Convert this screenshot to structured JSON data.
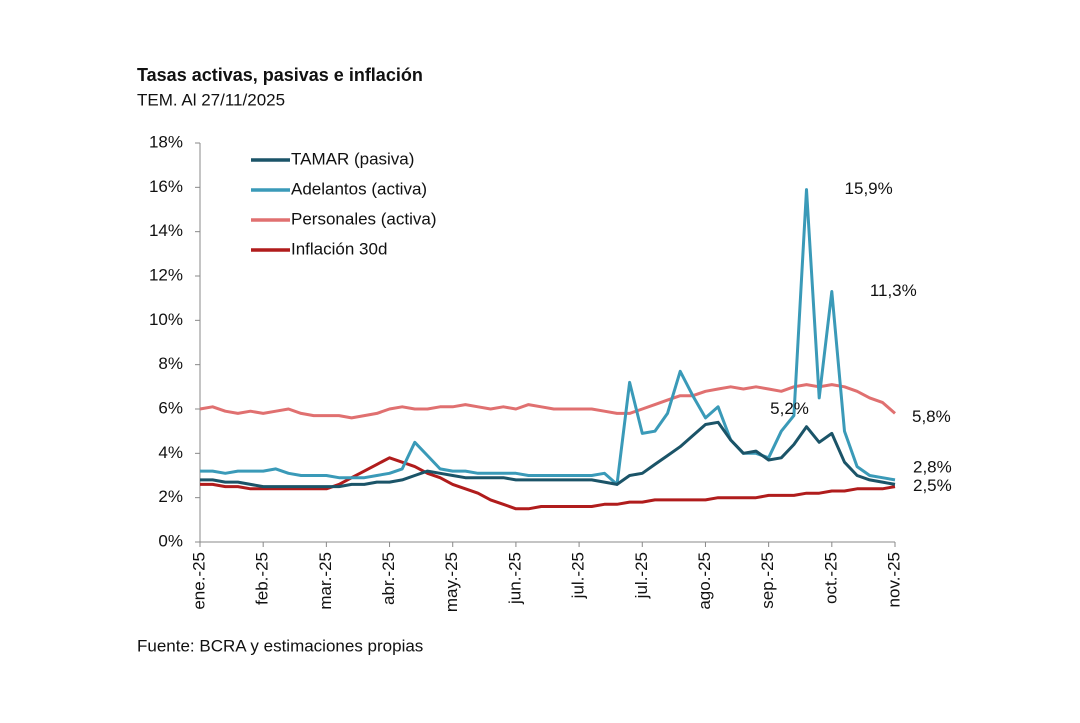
{
  "chart_data": {
    "type": "line",
    "title": "Tasas activas, pasivas e inflación",
    "subtitle": "TEM. Al 27/11/2025",
    "source": "Fuente: BCRA y estimaciones propias",
    "x": [
      0,
      0.2,
      0.4,
      0.6,
      0.8,
      1,
      1.2,
      1.4,
      1.6,
      1.8,
      2,
      2.2,
      2.4,
      2.6,
      2.8,
      3,
      3.2,
      3.4,
      3.6,
      3.8,
      4,
      4.2,
      4.4,
      4.6,
      4.8,
      5,
      5.2,
      5.4,
      5.6,
      5.8,
      6,
      6.2,
      6.4,
      6.6,
      6.8,
      7,
      7.2,
      7.4,
      7.6,
      7.8,
      8,
      8.2,
      8.4,
      8.6,
      8.8,
      9,
      9.2,
      9.4,
      9.6,
      9.8,
      10,
      10.2,
      10.4,
      10.6,
      10.8,
      11
    ],
    "xlim": [
      0,
      11
    ],
    "xticks": [
      {
        "value": 0,
        "label": "ene.-25"
      },
      {
        "value": 1,
        "label": "feb.-25"
      },
      {
        "value": 2,
        "label": "mar.-25"
      },
      {
        "value": 3,
        "label": "abr.-25"
      },
      {
        "value": 4,
        "label": "may.-25"
      },
      {
        "value": 5,
        "label": "jun.-25"
      },
      {
        "value": 6,
        "label": "jul.-25"
      },
      {
        "value": 7,
        "label": "jul.-25"
      },
      {
        "value": 8,
        "label": "ago.-25"
      },
      {
        "value": 9,
        "label": "sep.-25"
      },
      {
        "value": 10,
        "label": "oct.-25"
      },
      {
        "value": 11,
        "label": "nov.-25"
      }
    ],
    "ylim": [
      0,
      18
    ],
    "yticks": [
      {
        "value": 0,
        "label": "0%"
      },
      {
        "value": 2,
        "label": "2%"
      },
      {
        "value": 4,
        "label": "4%"
      },
      {
        "value": 6,
        "label": "6%"
      },
      {
        "value": 8,
        "label": "8%"
      },
      {
        "value": 10,
        "label": "10%"
      },
      {
        "value": 12,
        "label": "12%"
      },
      {
        "value": 14,
        "label": "14%"
      },
      {
        "value": 16,
        "label": "16%"
      },
      {
        "value": 18,
        "label": "18%"
      }
    ],
    "grid": false,
    "legend": "upper left",
    "series": [
      {
        "name": "TAMAR (pasiva)",
        "color": "#1b5468",
        "values": [
          2.8,
          2.8,
          2.7,
          2.7,
          2.6,
          2.5,
          2.5,
          2.5,
          2.5,
          2.5,
          2.5,
          2.5,
          2.6,
          2.6,
          2.7,
          2.7,
          2.8,
          3.0,
          3.2,
          3.1,
          3.0,
          2.9,
          2.9,
          2.9,
          2.9,
          2.8,
          2.8,
          2.8,
          2.8,
          2.8,
          2.8,
          2.8,
          2.7,
          2.6,
          3.0,
          3.1,
          3.5,
          3.9,
          4.3,
          4.8,
          5.3,
          5.4,
          4.6,
          4.0,
          4.1,
          3.7,
          3.8,
          4.4,
          5.2,
          4.5,
          4.9,
          3.6,
          3.0,
          2.8,
          2.7,
          2.6
        ],
        "value_labels": [
          null,
          null,
          null,
          null,
          null,
          null,
          null,
          null,
          null,
          null,
          null,
          null,
          null,
          null,
          null,
          null,
          null,
          null,
          null,
          null,
          null,
          null,
          null,
          null,
          null,
          null,
          null,
          null,
          null,
          null,
          null,
          null,
          null,
          null,
          null,
          null,
          null,
          null,
          null,
          null,
          null,
          null,
          null,
          null,
          null,
          null,
          null,
          null,
          "5,2%",
          null,
          null,
          null,
          null,
          null,
          null,
          null
        ]
      },
      {
        "name": "Adelantos (activa)",
        "color": "#3a9ab8",
        "values": [
          3.2,
          3.2,
          3.1,
          3.2,
          3.2,
          3.2,
          3.3,
          3.1,
          3.0,
          3.0,
          3.0,
          2.9,
          2.9,
          2.9,
          3.0,
          3.1,
          3.3,
          4.5,
          3.9,
          3.3,
          3.2,
          3.2,
          3.1,
          3.1,
          3.1,
          3.1,
          3.0,
          3.0,
          3.0,
          3.0,
          3.0,
          3.0,
          3.1,
          2.6,
          7.2,
          4.9,
          5.0,
          5.8,
          7.7,
          6.6,
          5.6,
          6.1,
          4.6,
          4.0,
          4.0,
          3.8,
          5.0,
          5.7,
          15.9,
          6.5,
          11.3,
          5.0,
          3.4,
          3.0,
          2.9,
          2.8
        ],
        "value_labels": [
          null,
          null,
          null,
          null,
          null,
          null,
          null,
          null,
          null,
          null,
          null,
          null,
          null,
          null,
          null,
          null,
          null,
          null,
          null,
          null,
          null,
          null,
          null,
          null,
          null,
          null,
          null,
          null,
          null,
          null,
          null,
          null,
          null,
          null,
          null,
          null,
          null,
          null,
          null,
          null,
          null,
          null,
          null,
          null,
          null,
          null,
          null,
          null,
          "15,9%",
          null,
          "11,3%",
          null,
          null,
          null,
          null,
          "2,8%"
        ]
      },
      {
        "name": "Personales (activa)",
        "color": "#e07070",
        "values": [
          6.0,
          6.1,
          5.9,
          5.8,
          5.9,
          5.8,
          5.9,
          6.0,
          5.8,
          5.7,
          5.7,
          5.7,
          5.6,
          5.7,
          5.8,
          6.0,
          6.1,
          6.0,
          6.0,
          6.1,
          6.1,
          6.2,
          6.1,
          6.0,
          6.1,
          6.0,
          6.2,
          6.1,
          6.0,
          6.0,
          6.0,
          6.0,
          5.9,
          5.8,
          5.8,
          6.0,
          6.2,
          6.4,
          6.6,
          6.6,
          6.8,
          6.9,
          7.0,
          6.9,
          7.0,
          6.9,
          6.8,
          7.0,
          7.1,
          7.0,
          7.1,
          7.0,
          6.8,
          6.5,
          6.3,
          5.8
        ],
        "value_labels": [
          null,
          null,
          null,
          null,
          null,
          null,
          null,
          null,
          null,
          null,
          null,
          null,
          null,
          null,
          null,
          null,
          null,
          null,
          null,
          null,
          null,
          null,
          null,
          null,
          null,
          null,
          null,
          null,
          null,
          null,
          null,
          null,
          null,
          null,
          null,
          null,
          null,
          null,
          null,
          null,
          null,
          null,
          null,
          null,
          null,
          null,
          null,
          null,
          null,
          null,
          null,
          null,
          null,
          null,
          null,
          "5,8%"
        ]
      },
      {
        "name": "Inflación 30d",
        "color": "#b01c1c",
        "values": [
          2.6,
          2.6,
          2.5,
          2.5,
          2.4,
          2.4,
          2.4,
          2.4,
          2.4,
          2.4,
          2.4,
          2.6,
          2.9,
          3.2,
          3.5,
          3.8,
          3.6,
          3.4,
          3.1,
          2.9,
          2.6,
          2.4,
          2.2,
          1.9,
          1.7,
          1.5,
          1.5,
          1.6,
          1.6,
          1.6,
          1.6,
          1.6,
          1.7,
          1.7,
          1.8,
          1.8,
          1.9,
          1.9,
          1.9,
          1.9,
          1.9,
          2.0,
          2.0,
          2.0,
          2.0,
          2.1,
          2.1,
          2.1,
          2.2,
          2.2,
          2.3,
          2.3,
          2.4,
          2.4,
          2.4,
          2.5
        ],
        "value_labels": [
          null,
          null,
          null,
          null,
          null,
          null,
          null,
          null,
          null,
          null,
          null,
          null,
          null,
          null,
          null,
          null,
          null,
          null,
          null,
          null,
          null,
          null,
          null,
          null,
          null,
          null,
          null,
          null,
          null,
          null,
          null,
          null,
          null,
          null,
          null,
          null,
          null,
          null,
          null,
          null,
          null,
          null,
          null,
          null,
          null,
          null,
          null,
          null,
          null,
          null,
          null,
          null,
          null,
          null,
          null,
          "2,5%"
        ]
      }
    ]
  }
}
